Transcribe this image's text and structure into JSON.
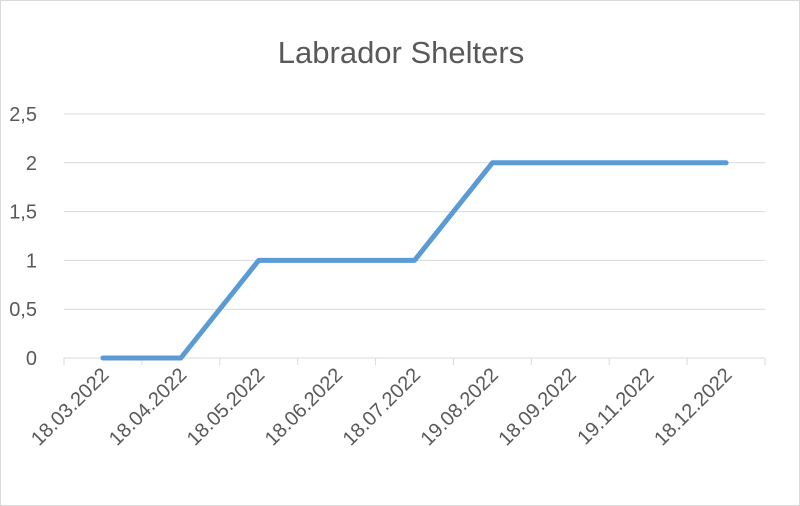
{
  "chart_data": {
    "type": "line",
    "title": "Labrador Shelters",
    "xlabel": "",
    "ylabel": "",
    "categories": [
      "18.03.2022",
      "18.04.2022",
      "18.05.2022",
      "18.06.2022",
      "18.07.2022",
      "19.08.2022",
      "18.09.2022",
      "19.11.2022",
      "18.12.2022"
    ],
    "series": [
      {
        "values": [
          0,
          0,
          1,
          1,
          1,
          2,
          2,
          2,
          2
        ],
        "color": "#5b9bd5"
      }
    ],
    "ylim": [
      0,
      2.5
    ],
    "yticks": [
      "0",
      "0,5",
      "1",
      "1,5",
      "2",
      "2,5"
    ],
    "grid": true,
    "legend": "none"
  }
}
